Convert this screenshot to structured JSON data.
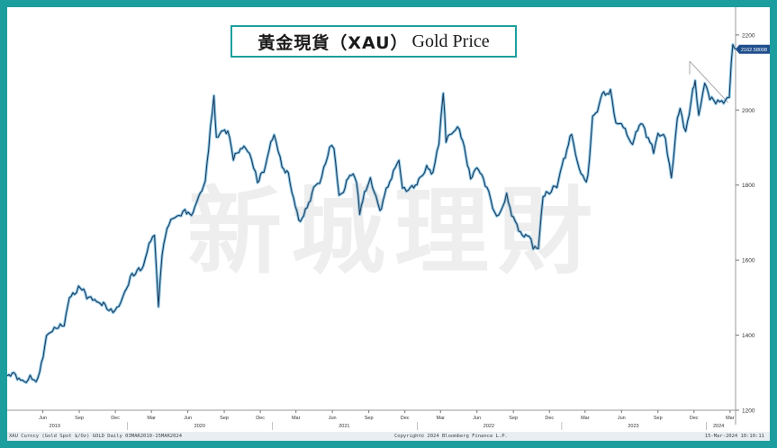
{
  "title": {
    "chinese": "黃金現貨（XAU）",
    "english": "Gold Price"
  },
  "watermark": "新城理財",
  "last_price_label": "2162.58008",
  "footer": {
    "left": "XAU Curncy (Gold Spot  $/Oz) GOLD  Daily 03MAR2019-15MAR2024",
    "center": "Copyright© 2024 Bloomberg Finance L.P.",
    "right": "15-Mar-2024 10:10:11"
  },
  "colors": {
    "frame": "#1d9e9e",
    "line": "#1f3a5a",
    "glow": "#7cc3e8",
    "background": "#ffffff",
    "price_tag": "#1f4e8c"
  },
  "chart_data": {
    "type": "line",
    "ylim": [
      1200,
      2250
    ],
    "y_ticks": [
      1200,
      1400,
      1600,
      1800,
      2000,
      2200
    ],
    "x_range": [
      "2019-03-03",
      "2024-03-15"
    ],
    "x_month_ticks": [
      {
        "date": "2019-06-01",
        "label": "Jun"
      },
      {
        "date": "2019-09-01",
        "label": "Sep"
      },
      {
        "date": "2019-12-01",
        "label": "Dec"
      },
      {
        "date": "2020-03-01",
        "label": "Mar"
      },
      {
        "date": "2020-06-01",
        "label": "Jun"
      },
      {
        "date": "2020-09-01",
        "label": "Sep"
      },
      {
        "date": "2020-12-01",
        "label": "Dec"
      },
      {
        "date": "2021-03-01",
        "label": "Mar"
      },
      {
        "date": "2021-06-01",
        "label": "Jun"
      },
      {
        "date": "2021-09-01",
        "label": "Sep"
      },
      {
        "date": "2021-12-01",
        "label": "Dec"
      },
      {
        "date": "2022-03-01",
        "label": "Mar"
      },
      {
        "date": "2022-06-01",
        "label": "Jun"
      },
      {
        "date": "2022-09-01",
        "label": "Sep"
      },
      {
        "date": "2022-12-01",
        "label": "Dec"
      },
      {
        "date": "2023-03-01",
        "label": "Mar"
      },
      {
        "date": "2023-06-01",
        "label": "Jun"
      },
      {
        "date": "2023-09-01",
        "label": "Sep"
      },
      {
        "date": "2023-12-01",
        "label": "Dec"
      },
      {
        "date": "2024-03-01",
        "label": "Mar"
      }
    ],
    "x_year_ticks": [
      {
        "date": "2019-07-01",
        "label": "2019"
      },
      {
        "date": "2020-07-01",
        "label": "2020"
      },
      {
        "date": "2021-07-01",
        "label": "2021"
      },
      {
        "date": "2022-07-01",
        "label": "2022"
      },
      {
        "date": "2023-07-01",
        "label": "2023"
      },
      {
        "date": "2024-02-01",
        "label": "2024"
      }
    ],
    "series": [
      {
        "x": [
          "2019-03-03",
          "2019-03-20",
          "2019-04-10",
          "2019-04-30",
          "2019-05-20",
          "2019-06-10",
          "2019-06-25",
          "2019-07-10",
          "2019-07-25",
          "2019-08-07",
          "2019-08-20",
          "2019-09-04",
          "2019-09-20",
          "2019-10-05",
          "2019-10-20",
          "2019-11-05",
          "2019-11-20",
          "2019-12-05",
          "2019-12-20",
          "2020-01-08",
          "2020-01-25",
          "2020-02-10",
          "2020-02-24",
          "2020-03-09",
          "2020-03-19",
          "2020-03-28",
          "2020-04-14",
          "2020-04-25",
          "2020-05-10",
          "2020-05-25",
          "2020-06-10",
          "2020-06-28",
          "2020-07-15",
          "2020-07-28",
          "2020-08-06",
          "2020-08-12",
          "2020-08-25",
          "2020-09-10",
          "2020-09-24",
          "2020-10-08",
          "2020-10-25",
          "2020-11-09",
          "2020-11-24",
          "2020-12-10",
          "2021-01-05",
          "2021-01-25",
          "2021-02-10",
          "2021-03-08",
          "2021-03-25",
          "2021-04-15",
          "2021-05-05",
          "2021-05-25",
          "2021-06-05",
          "2021-06-18",
          "2021-06-29",
          "2021-07-15",
          "2021-08-01",
          "2021-08-09",
          "2021-08-25",
          "2021-09-05",
          "2021-09-29",
          "2021-10-15",
          "2021-11-16",
          "2021-11-25",
          "2021-12-15",
          "2022-01-05",
          "2022-01-25",
          "2022-02-10",
          "2022-02-25",
          "2022-03-08",
          "2022-03-15",
          "2022-03-29",
          "2022-04-18",
          "2022-05-04",
          "2022-05-16",
          "2022-06-01",
          "2022-06-13",
          "2022-07-01",
          "2022-07-21",
          "2022-08-15",
          "2022-09-01",
          "2022-09-28",
          "2022-10-10",
          "2022-10-21",
          "2022-11-03",
          "2022-11-15",
          "2022-12-01",
          "2022-12-20",
          "2023-01-10",
          "2023-01-26",
          "2023-02-10",
          "2023-02-28",
          "2023-03-08",
          "2023-03-20",
          "2023-04-05",
          "2023-04-13",
          "2023-05-04",
          "2023-05-18",
          "2023-06-01",
          "2023-06-29",
          "2023-07-20",
          "2023-08-03",
          "2023-08-21",
          "2023-09-01",
          "2023-09-20",
          "2023-10-05",
          "2023-10-20",
          "2023-10-27",
          "2023-11-10",
          "2023-11-28",
          "2023-12-04",
          "2023-12-13",
          "2023-12-28",
          "2024-01-10",
          "2024-01-25",
          "2024-02-14",
          "2024-02-28",
          "2024-03-04",
          "2024-03-08",
          "2024-03-15"
        ],
        "y": [
          1295,
          1300,
          1275,
          1285,
          1280,
          1395,
          1410,
          1420,
          1425,
          1500,
          1510,
          1530,
          1505,
          1500,
          1490,
          1480,
          1465,
          1470,
          1500,
          1555,
          1570,
          1580,
          1640,
          1665,
          1480,
          1620,
          1700,
          1715,
          1720,
          1735,
          1720,
          1770,
          1810,
          1950,
          2030,
          1920,
          1940,
          1945,
          1870,
          1890,
          1900,
          1870,
          1810,
          1840,
          1940,
          1850,
          1830,
          1700,
          1730,
          1790,
          1820,
          1900,
          1895,
          1770,
          1780,
          1830,
          1815,
          1730,
          1790,
          1820,
          1730,
          1790,
          1865,
          1790,
          1790,
          1810,
          1845,
          1830,
          1910,
          2050,
          1920,
          1940,
          1950,
          1880,
          1820,
          1850,
          1830,
          1780,
          1710,
          1770,
          1710,
          1660,
          1665,
          1630,
          1630,
          1770,
          1780,
          1800,
          1880,
          1940,
          1860,
          1810,
          1820,
          1980,
          2010,
          2040,
          2050,
          1960,
          1960,
          1910,
          1970,
          1935,
          1890,
          1940,
          1925,
          1820,
          1980,
          2005,
          1940,
          2050,
          2070,
          1980,
          2070,
          2030,
          2020,
          2020,
          2035,
          2130,
          2180,
          2162
        ]
      }
    ]
  }
}
